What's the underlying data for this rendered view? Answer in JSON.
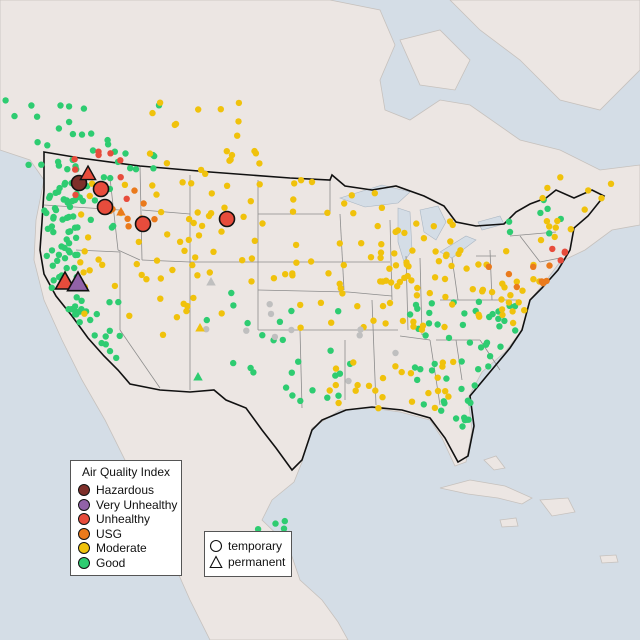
{
  "colors": {
    "water": "#d4dde6",
    "land": "#ece6e3",
    "state_border": "#8c8c8c",
    "country_border": "#111111",
    "Hazardous": "#7e2f2a",
    "Very Unhealthy": "#9162a8",
    "Unhealthy": "#e74c3c",
    "USG": "#ea7a1c",
    "Moderate": "#f0c20c",
    "Good": "#2ecc71",
    "No Data": "#bfbfbf"
  },
  "legend": {
    "title": "Air Quality Index",
    "categories": [
      "Hazardous",
      "Very Unhealthy",
      "Unhealthy",
      "USG",
      "Moderate",
      "Good"
    ]
  },
  "shape_legend": {
    "items": [
      {
        "label": "temporary",
        "shape": "circle"
      },
      {
        "label": "permanent",
        "shape": "triangle"
      }
    ]
  }
}
